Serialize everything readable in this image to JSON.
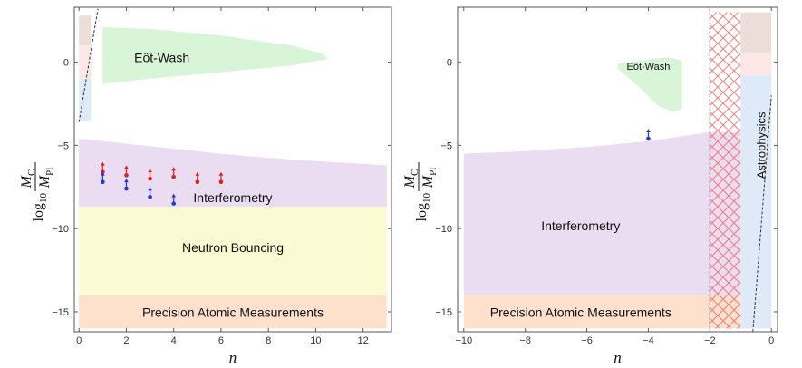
{
  "chart_data": [
    {
      "type": "area",
      "xlabel": "n",
      "ylabel": {
        "prefix": "log",
        "sub": "10",
        "num": "M",
        "num_sub": "C",
        "den": "M",
        "den_sub": "Pl"
      },
      "xlim": [
        -0.2,
        13.2
      ],
      "ylim": [
        -16.2,
        3.3
      ],
      "x_ticks": [
        0,
        2,
        4,
        6,
        8,
        10,
        12
      ],
      "y_ticks": [
        0,
        -5,
        -10,
        -15
      ],
      "regions": [
        {
          "name": "Eöt-Wash",
          "color": "#d8f5d8",
          "points": [
            [
              1,
              2.1
            ],
            [
              3,
              2.0
            ],
            [
              6,
              1.6
            ],
            [
              9,
              1.0
            ],
            [
              10.3,
              0.5
            ],
            [
              10.5,
              0.2
            ],
            [
              9,
              -0.2
            ],
            [
              6,
              -0.6
            ],
            [
              3,
              -1.0
            ],
            [
              1,
              -1.3
            ]
          ],
          "label_at": [
            3.5,
            0.2
          ],
          "label_size": 14
        },
        {
          "name": "Interferometry",
          "color": "#eadcf1",
          "points": [
            [
              0,
              -4.6
            ],
            [
              2,
              -4.9
            ],
            [
              4,
              -5.2
            ],
            [
              6,
              -5.5
            ],
            [
              8,
              -5.75
            ],
            [
              10,
              -5.95
            ],
            [
              13,
              -6.2
            ],
            [
              13,
              -8.7
            ],
            [
              0,
              -8.7
            ]
          ],
          "label_at": [
            6.5,
            -8.2
          ],
          "label_size": 14
        },
        {
          "name": "Neutron Bouncing",
          "color": "#fbfbd3",
          "points": [
            [
              0,
              -8.7
            ],
            [
              13,
              -8.7
            ],
            [
              13,
              -14.0
            ],
            [
              0,
              -14.0
            ]
          ],
          "label_at": [
            6.5,
            -11.2
          ],
          "label_size": 14
        },
        {
          "name": "Precision Atomic Measurements",
          "color": "#fde1cd",
          "points": [
            [
              0,
              -14.0
            ],
            [
              13,
              -14.0
            ],
            [
              13,
              -16.0
            ],
            [
              0,
              -16.0
            ]
          ],
          "label_at": [
            6.5,
            -15.1
          ],
          "label_size": 14
        }
      ],
      "strips": [
        {
          "color": "#ecddd8",
          "x": [
            0,
            0.5
          ],
          "y": [
            1.0,
            2.8
          ]
        },
        {
          "color": "#fde6e6",
          "x": [
            0,
            0.5
          ],
          "y": [
            -1.0,
            1.0
          ]
        },
        {
          "color": "#dfeaf8",
          "x": [
            0,
            0.5
          ],
          "y": [
            -3.5,
            -1.0
          ]
        }
      ],
      "dashed_lines": [
        {
          "points": [
            [
              0,
              -3.6
            ],
            [
              0.8,
              3.2
            ]
          ]
        }
      ],
      "series": [
        {
          "color": "#e02020",
          "points": [
            [
              1,
              -6.6
            ],
            [
              2,
              -6.8
            ],
            [
              3,
              -7.0
            ],
            [
              4,
              -6.9
            ],
            [
              5,
              -7.2
            ],
            [
              6,
              -7.2
            ]
          ]
        },
        {
          "color": "#1f3ad8",
          "points": [
            [
              1,
              -7.2
            ],
            [
              2,
              -7.6
            ],
            [
              3,
              -8.1
            ],
            [
              4,
              -8.5
            ]
          ]
        }
      ]
    },
    {
      "type": "area",
      "xlabel": "n",
      "ylabel": {
        "prefix": "log",
        "sub": "10",
        "num": "M",
        "num_sub": "C",
        "den": "M",
        "den_sub": "Pl"
      },
      "xlim": [
        -10.2,
        0.2
      ],
      "ylim": [
        -16.2,
        3.3
      ],
      "x_ticks": [
        -10,
        -8,
        -6,
        -4,
        -2,
        0
      ],
      "y_ticks": [
        0,
        -5,
        -10,
        -15
      ],
      "regions": [
        {
          "name": "Interferometry",
          "color": "#eadcf1",
          "points": [
            [
              -10,
              -5.5
            ],
            [
              -8,
              -5.35
            ],
            [
              -6,
              -5.1
            ],
            [
              -4,
              -4.75
            ],
            [
              -2,
              -4.2
            ],
            [
              -2,
              -14.0
            ],
            [
              -10,
              -14.0
            ]
          ],
          "label_at": [
            -6.2,
            -9.9
          ],
          "label_size": 14
        },
        {
          "name": "Precision Atomic Measurements",
          "color": "#fde1cd",
          "points": [
            [
              -10,
              -14.0
            ],
            [
              -2,
              -14.0
            ],
            [
              -2,
              -16.0
            ],
            [
              -10,
              -16.0
            ]
          ],
          "label_at": [
            -6.2,
            -15.1
          ],
          "label_size": 14
        },
        {
          "name": "Eöt-Wash",
          "color": "#d8f5d8",
          "points": [
            [
              -5.0,
              -0.1
            ],
            [
              -3.4,
              0.3
            ],
            [
              -2.9,
              0.1
            ],
            [
              -2.9,
              -2.8
            ],
            [
              -3.2,
              -3.0
            ],
            [
              -3.7,
              -2.6
            ],
            [
              -4.3,
              -1.5
            ],
            [
              -5.0,
              -0.4
            ]
          ],
          "label_at": [
            -4.0,
            -0.3
          ],
          "label_size": 11
        }
      ],
      "vertical_bands": [
        {
          "color": "#fde1cd",
          "x": [
            -2,
            -1.0
          ],
          "y": [
            -16,
            -14
          ]
        },
        {
          "color": "#eadcf1",
          "x": [
            -2,
            -1.0
          ],
          "y": [
            -14,
            -4.2
          ]
        }
      ],
      "hatched_band": {
        "color": "#ee6a6a",
        "x": [
          -2,
          -1.0
        ],
        "y": [
          -16,
          3.0
        ]
      },
      "strips": [
        {
          "color": "#ecddd8",
          "x": [
            -1.0,
            0.0
          ],
          "y": [
            0.6,
            3.0
          ]
        },
        {
          "color": "#fde6e6",
          "x": [
            -1.0,
            0.0
          ],
          "y": [
            -0.8,
            0.6
          ]
        },
        {
          "color": "#dfeaf8",
          "x": [
            -1.0,
            0.0
          ],
          "y": [
            -16.0,
            -0.8
          ]
        }
      ],
      "vertical_label": {
        "text": "Astrophysics",
        "at": [
          -0.3,
          -5.0
        ]
      },
      "dashed_lines": [
        {
          "points": [
            [
              -2,
              -16
            ],
            [
              -2,
              3.3
            ]
          ]
        },
        {
          "points": [
            [
              -0.6,
              -16.2
            ],
            [
              0.0,
              -2.0
            ]
          ]
        }
      ],
      "series": [
        {
          "color": "#1f3ad8",
          "points": [
            [
              -4,
              -4.6
            ]
          ]
        }
      ]
    }
  ]
}
